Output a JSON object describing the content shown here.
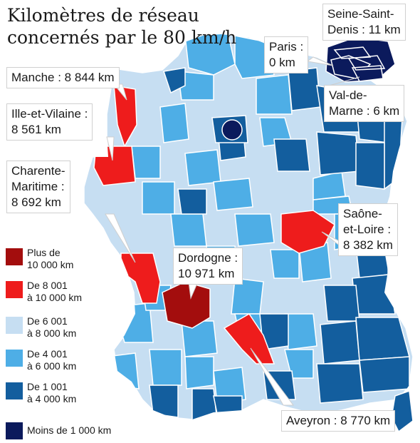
{
  "title": "Kilomètres de réseau concernés par le 80 km/h",
  "colors": {
    "over_10000": "#a30d0d",
    "8001_10000": "#ee1c1c",
    "6001_8000": "#c6def2",
    "4001_6000": "#4eaee6",
    "1001_4000": "#135e9e",
    "under_1000": "#0b1a5c"
  },
  "legend": [
    {
      "label": "Plus de\n10 000 km",
      "color": "#a30d0d"
    },
    {
      "label": "De 8 001\nà 10 000 km",
      "color": "#ee1c1c"
    },
    {
      "label": "De 6 001\nà 8 000 km",
      "color": "#c6def2"
    },
    {
      "label": "De 4 001\nà 6 000 km",
      "color": "#4eaee6"
    },
    {
      "label": "De 1 001\nà 4 000 km",
      "color": "#135e9e"
    },
    {
      "label": "Moins de 1 000 km",
      "color": "#0b1a5c"
    }
  ],
  "callouts": [
    {
      "label": "Seine-Saint-\nDenis : 11 km"
    },
    {
      "label": "Paris :\n0 km"
    },
    {
      "label": "Manche : 8 844 km"
    },
    {
      "label": "Val-de-\nMarne : 6 km"
    },
    {
      "label": "Ille-et-Vilaine :\n8 561 km"
    },
    {
      "label": "Charente-\nMaritime :\n8 692 km"
    },
    {
      "label": "Saône-\net-Loire :\n8 382 km"
    },
    {
      "label": "Dordogne :\n10 971 km"
    },
    {
      "label": "Aveyron : 8 770 km"
    }
  ]
}
